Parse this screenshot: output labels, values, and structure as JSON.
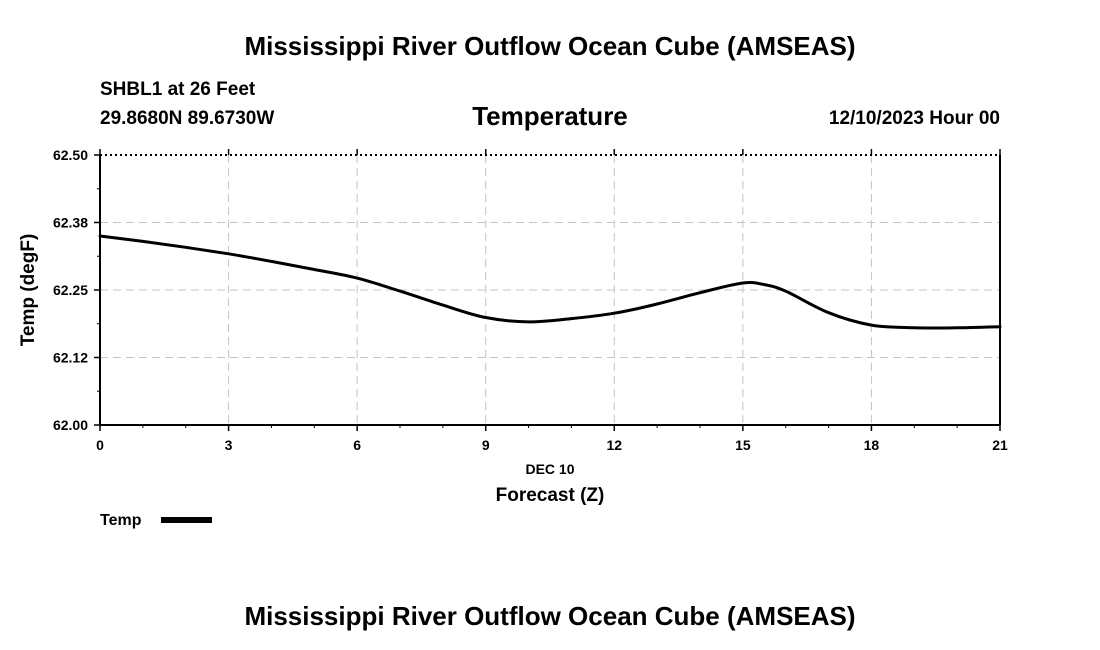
{
  "header": {
    "title": "Mississippi River Outflow Ocean Cube (AMSEAS)",
    "station": "SHBL1 at 26 Feet",
    "location": "29.8680N  89.6730W",
    "datetime": "12/10/2023 Hour 00"
  },
  "footer": {
    "title": "Mississippi River Outflow Ocean Cube (AMSEAS)"
  },
  "chart_data": {
    "type": "line",
    "title": "Temperature",
    "xlabel": "Forecast (Z)",
    "xlabel_date": "DEC 10",
    "ylabel": "Temp (degF)",
    "xlim": [
      0,
      21
    ],
    "ylim": [
      62.0,
      62.5
    ],
    "x_ticks": [
      0,
      3,
      6,
      9,
      12,
      15,
      18,
      21
    ],
    "x_tick_labels": [
      "0",
      "3",
      "6",
      "9",
      "12",
      "15",
      "18",
      "21"
    ],
    "y_ticks": [
      62.0,
      62.125,
      62.25,
      62.375,
      62.5
    ],
    "y_tick_labels": [
      "62.00",
      "62.12",
      "62.25",
      "62.38",
      "62.50"
    ],
    "grid": true,
    "legend_position": "bottom-left",
    "series": [
      {
        "name": "Temp",
        "color": "#000000",
        "x": [
          0,
          1,
          2,
          3,
          4,
          5,
          6,
          7,
          8,
          9,
          10,
          11,
          12,
          13,
          14,
          15,
          15.5,
          16,
          17,
          18,
          19,
          20,
          21
        ],
        "values": [
          62.35,
          62.34,
          62.329,
          62.317,
          62.303,
          62.288,
          62.272,
          62.248,
          62.222,
          62.199,
          62.191,
          62.197,
          62.207,
          62.224,
          62.245,
          62.263,
          62.26,
          62.248,
          62.208,
          62.185,
          62.18,
          62.18,
          62.182
        ]
      }
    ]
  }
}
